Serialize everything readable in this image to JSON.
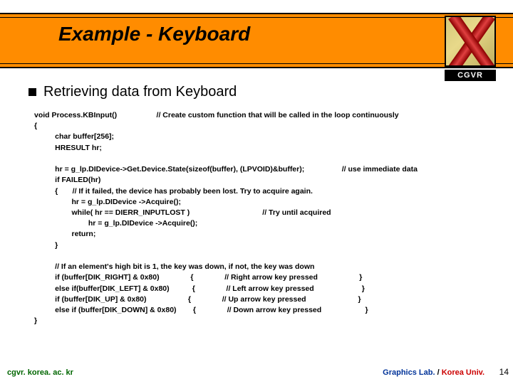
{
  "title": "Example - Keyboard",
  "logo_label": "CGVR",
  "heading": "Retrieving data from Keyboard",
  "code_text": "void Process.KBInput()                   // Create custom function that will be called in the loop continuously\n{\n          char buffer[256];\n          HRESULT hr;\n\n          hr = g_lp.DIDevice->Get.Device.State(sizeof(buffer), (LPVOID)&buffer);                  // use immediate data\n          if FAILED(hr)\n          {       // If it failed, the device has probably been lost. Try to acquire again.\n                  hr = g_lp.DIDevice ->Acquire();\n                  while( hr == DIERR_INPUTLOST )                                   // Try until acquired\n                          hr = g_lp.DIDevice ->Acquire();\n                  return;\n          }\n\n          // If an element's high bit is 1, the key was down, if not, the key was down\n          if (buffer[DIK_RIGHT] & 0x80)               {               // Right arrow key pressed                    }\n          else if(buffer[DIK_LEFT] & 0x80)           {               // Left arrow key pressed                       }\n          if (buffer[DIK_UP] & 0x80)                    {               // Up arrow key pressed                         }\n          else if (buffer[DIK_DOWN] & 0x80)        {               // Down arrow key pressed                     }\n}",
  "footer_left": "cgvr. korea. ac. kr",
  "footer_right_1": "Graphics Lab. ",
  "footer_right_sep": "/ ",
  "footer_right_2": "Korea Univ.",
  "page_number": "14",
  "colors": {
    "band": "#ff8c00",
    "footer_green": "#006600",
    "footer_blue": "#003399",
    "footer_red": "#cc0000"
  }
}
